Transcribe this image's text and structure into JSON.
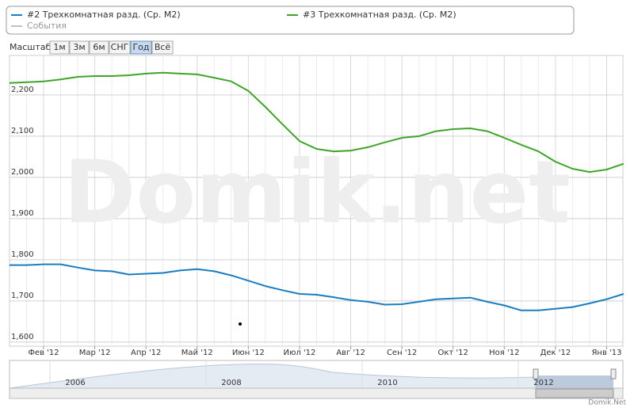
{
  "chart_data": {
    "type": "line",
    "watermark": "Domik.net",
    "credit": "Domik.Net",
    "range_selector": {
      "label": "Масштаб",
      "buttons": [
        "1м",
        "3м",
        "6м",
        "СНГ",
        "Год",
        "Всё"
      ],
      "selected": 4
    },
    "events": {
      "name": "События",
      "color": "#aaaaaa"
    },
    "categories": [
      null,
      null,
      "Фев '12",
      null,
      null,
      "Мар '12",
      null,
      null,
      "Апр '12",
      null,
      null,
      "Май '12",
      null,
      null,
      "Июн '12",
      null,
      null,
      "Июл '12",
      null,
      null,
      "Авг '12",
      null,
      null,
      "Сен '12",
      null,
      null,
      "Окт '12",
      null,
      null,
      "Ноя '12",
      null,
      null,
      "Дек '12",
      null,
      null,
      "Янв '13",
      null
    ],
    "series": [
      {
        "name": "#2 Трехкомнатная разд. (Ср. М2)",
        "color": "#1a7dc0",
        "values": [
          1787,
          1787,
          1789,
          1789,
          1781,
          1774,
          1772,
          1764,
          1766,
          1768,
          1774,
          1777,
          1772,
          1762,
          1749,
          1736,
          1726,
          1717,
          1715,
          1709,
          1702,
          1698,
          1691,
          1692,
          1698,
          1704,
          1706,
          1708,
          1698,
          1689,
          1677,
          1677,
          1681,
          1685,
          1694,
          1704,
          1717
        ]
      },
      {
        "name": "#3 Трехкомнатная разд. (Ср. М2)",
        "color": "#3fa52a",
        "values": [
          2229,
          2231,
          2233,
          2238,
          2244,
          2246,
          2246,
          2248,
          2252,
          2254,
          2252,
          2250,
          2242,
          2233,
          2210,
          2171,
          2129,
          2088,
          2069,
          2063,
          2065,
          2073,
          2085,
          2096,
          2100,
          2112,
          2117,
          2119,
          2112,
          2096,
          2079,
          2063,
          2038,
          2021,
          2013,
          2019,
          2033
        ]
      }
    ],
    "ylim": [
      1590,
      2296
    ],
    "yticks": [
      {
        "value": 1600,
        "label": "1,600"
      },
      {
        "value": 1700,
        "label": "1,700"
      },
      {
        "value": 1800,
        "label": "1,800"
      },
      {
        "value": 1900,
        "label": "1,900"
      },
      {
        "value": 2000,
        "label": "2,000"
      },
      {
        "value": 2100,
        "label": "2,100"
      },
      {
        "value": 2200,
        "label": "2,200"
      }
    ],
    "grid": true,
    "navigator": {
      "labels": [
        "2006",
        "2008",
        "2010",
        "2012"
      ]
    }
  }
}
